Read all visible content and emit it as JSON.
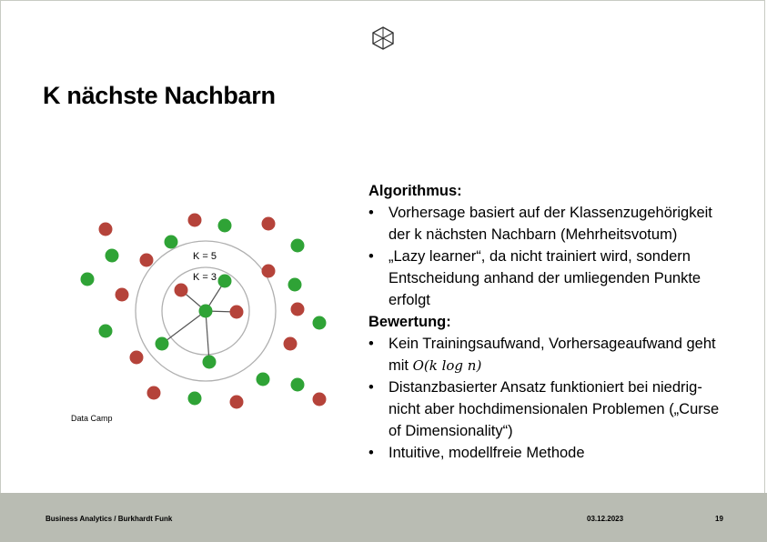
{
  "slide": {
    "title": "K nächste Nachbarn",
    "figure_source": "Data Camp",
    "figure_labels": {
      "k5": "K = 5",
      "k3": "K = 3"
    }
  },
  "content": {
    "heading1": "Algorithmus:",
    "bullets1": [
      "Vorhersage basiert auf der Klassenzugehörigkeit der k nächsten Nachbarn (Mehrheitsvotum)",
      "„Lazy learner“, da nicht trainiert wird, sondern Entscheidung anhand der umliegenden Punkte erfolgt"
    ],
    "heading2": "Bewertung:",
    "bullet2_1_text": "Kein Trainingsaufwand, Vorhersageaufwand geht mit",
    "bullet2_1_math": "𝑂(𝑘 log 𝑛)",
    "bullets2_rest": [
      "Distanzbasierter Ansatz funktioniert bei niedrig- nicht aber hochdimensionalen Problemen („Curse of Dimensionality“)",
      "Intuitive, modellfreie Methode"
    ]
  },
  "footer": {
    "left": "Business Analytics / Burkhardt Funk",
    "date": "03.12.2023",
    "page": "19"
  },
  "colors": {
    "red_point": "#b5433a",
    "green_point": "#2fa336",
    "circle": "#b0b0b0",
    "footer_bg": "#b9bcb3"
  }
}
